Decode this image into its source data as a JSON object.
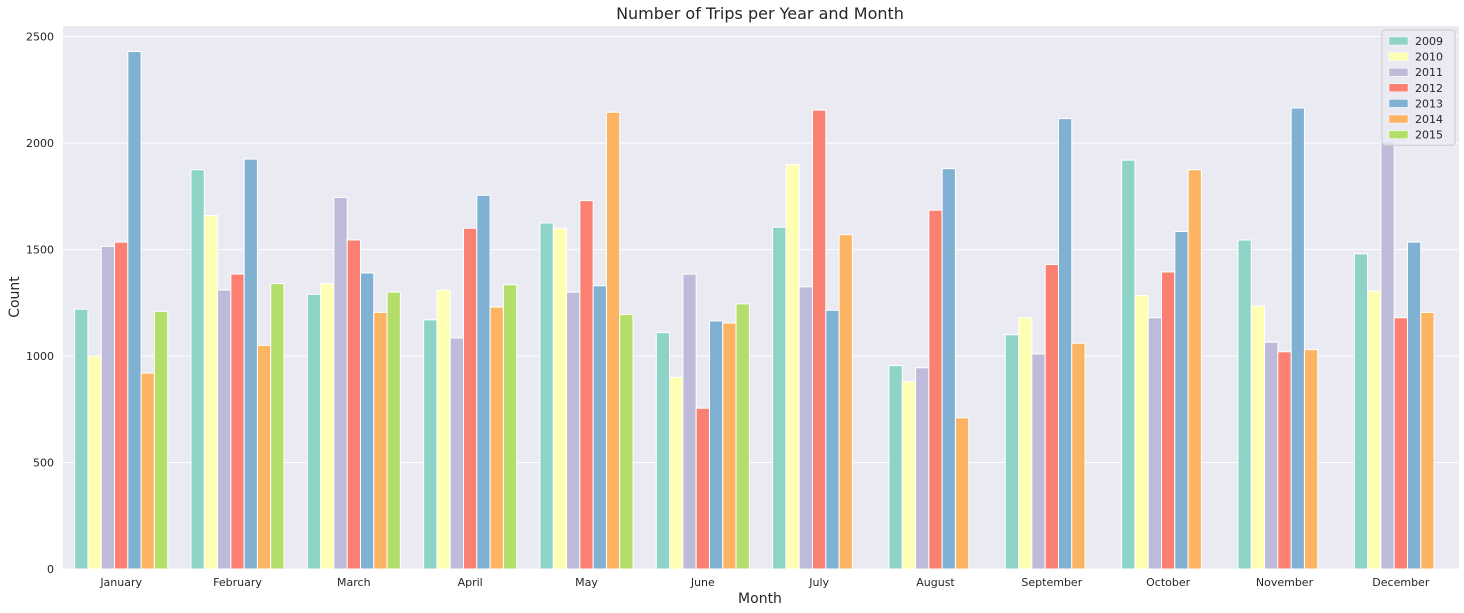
{
  "chart_data": {
    "type": "bar",
    "title": "Number of Trips per Year and Month",
    "xlabel": "Month",
    "ylabel": "Count",
    "ylim": [
      0,
      2550
    ],
    "yticks": [
      0,
      500,
      1000,
      1500,
      2000,
      2500
    ],
    "categories": [
      "January",
      "February",
      "March",
      "April",
      "May",
      "June",
      "July",
      "August",
      "September",
      "October",
      "November",
      "December"
    ],
    "series": [
      {
        "name": "2009",
        "color": "#8dd3c7",
        "values": [
          1220,
          1875,
          1290,
          1170,
          1625,
          1110,
          1605,
          955,
          1100,
          1920,
          1545,
          1480
        ]
      },
      {
        "name": "2010",
        "color": "#ffffb3",
        "values": [
          1000,
          1660,
          1340,
          1310,
          1600,
          900,
          1900,
          880,
          1180,
          1285,
          1235,
          1305
        ]
      },
      {
        "name": "2011",
        "color": "#bebada",
        "values": [
          1515,
          1310,
          1745,
          1085,
          1300,
          1385,
          1325,
          945,
          1010,
          1180,
          1065,
          2010
        ]
      },
      {
        "name": "2012",
        "color": "#fb8072",
        "values": [
          1535,
          1385,
          1545,
          1600,
          1730,
          755,
          2155,
          1685,
          1430,
          1395,
          1020,
          1180
        ]
      },
      {
        "name": "2013",
        "color": "#80b1d3",
        "values": [
          2430,
          1925,
          1390,
          1755,
          1330,
          1165,
          1215,
          1880,
          2115,
          1585,
          2165,
          1535
        ]
      },
      {
        "name": "2014",
        "color": "#fdb462",
        "values": [
          920,
          1050,
          1205,
          1230,
          2145,
          1155,
          1570,
          710,
          1060,
          1875,
          1030,
          1205
        ]
      },
      {
        "name": "2015",
        "color": "#b3de69",
        "values": [
          1210,
          1340,
          1300,
          1335,
          1195,
          1245,
          0,
          0,
          0,
          0,
          0,
          0
        ]
      }
    ]
  }
}
